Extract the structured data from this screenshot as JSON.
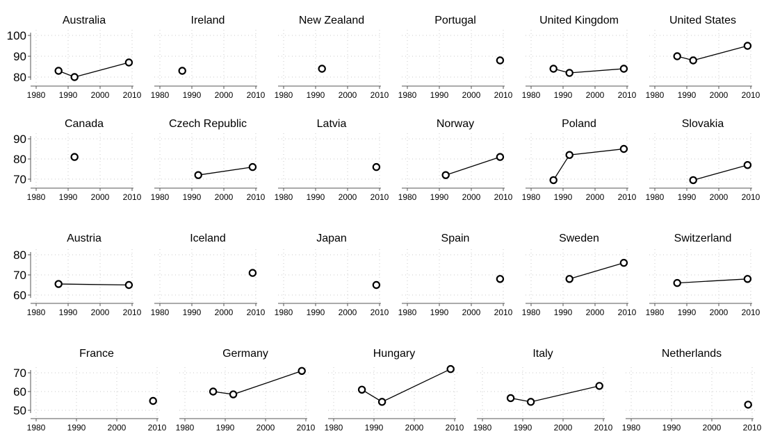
{
  "chart_data": {
    "type": "line",
    "xlim": [
      1980,
      2010
    ],
    "x_ticks": [
      1980,
      1990,
      2000,
      2010
    ],
    "grid": true,
    "marker": "hollow-circle",
    "line_color": "#000000",
    "rows": [
      {
        "ylim": [
          80,
          100
        ],
        "y_ticks": [
          80,
          90,
          100
        ],
        "panels": [
          {
            "title": "Australia",
            "x": [
              1987,
              1992,
              2009
            ],
            "y": [
              83,
              80,
              87
            ]
          },
          {
            "title": "Ireland",
            "x": [
              1987
            ],
            "y": [
              83
            ]
          },
          {
            "title": "New Zealand",
            "x": [
              1992
            ],
            "y": [
              84
            ]
          },
          {
            "title": "Portugal",
            "x": [
              2009
            ],
            "y": [
              88
            ]
          },
          {
            "title": "United Kingdom",
            "x": [
              1987,
              1992,
              2009
            ],
            "y": [
              84,
              82,
              84
            ]
          },
          {
            "title": "United States",
            "x": [
              1987,
              1992,
              2009
            ],
            "y": [
              90,
              88,
              95
            ]
          }
        ]
      },
      {
        "ylim": [
          70,
          90
        ],
        "y_ticks": [
          70,
          80,
          90
        ],
        "panels": [
          {
            "title": "Canada",
            "x": [
              1992
            ],
            "y": [
              81
            ]
          },
          {
            "title": "Czech Republic",
            "x": [
              1992,
              2009
            ],
            "y": [
              72,
              76
            ]
          },
          {
            "title": "Latvia",
            "x": [
              2009
            ],
            "y": [
              76
            ]
          },
          {
            "title": "Norway",
            "x": [
              1992,
              2009
            ],
            "y": [
              72,
              81
            ]
          },
          {
            "title": "Poland",
            "x": [
              1987,
              1992,
              2009
            ],
            "y": [
              69.5,
              82,
              85
            ]
          },
          {
            "title": "Slovakia",
            "x": [
              1992,
              2009
            ],
            "y": [
              69.5,
              77
            ]
          }
        ]
      },
      {
        "ylim": [
          60,
          80
        ],
        "y_ticks": [
          60,
          70,
          80
        ],
        "panels": [
          {
            "title": "Austria",
            "x": [
              1987,
              2009
            ],
            "y": [
              65.5,
              65
            ]
          },
          {
            "title": "Iceland",
            "x": [
              2009
            ],
            "y": [
              71
            ]
          },
          {
            "title": "Japan",
            "x": [
              2009
            ],
            "y": [
              65
            ]
          },
          {
            "title": "Spain",
            "x": [
              2009
            ],
            "y": [
              68
            ]
          },
          {
            "title": "Sweden",
            "x": [
              1992,
              2009
            ],
            "y": [
              68,
              76
            ]
          },
          {
            "title": "Switzerland",
            "x": [
              1987,
              2009
            ],
            "y": [
              66,
              68
            ]
          }
        ]
      },
      {
        "ylim": [
          50,
          70
        ],
        "y_ticks": [
          50,
          60,
          70
        ],
        "panels": [
          {
            "title": "France",
            "x": [
              2009
            ],
            "y": [
              55
            ]
          },
          {
            "title": "Germany",
            "x": [
              1987,
              1992,
              2009
            ],
            "y": [
              60,
              58.5,
              71
            ]
          },
          {
            "title": "Hungary",
            "x": [
              1987,
              1992,
              2009
            ],
            "y": [
              61,
              54.5,
              72
            ]
          },
          {
            "title": "Italy",
            "x": [
              1987,
              1992,
              2009
            ],
            "y": [
              56.5,
              54.5,
              63
            ]
          },
          {
            "title": "Netherlands",
            "x": [
              2009
            ],
            "y": [
              53
            ]
          }
        ]
      }
    ]
  }
}
